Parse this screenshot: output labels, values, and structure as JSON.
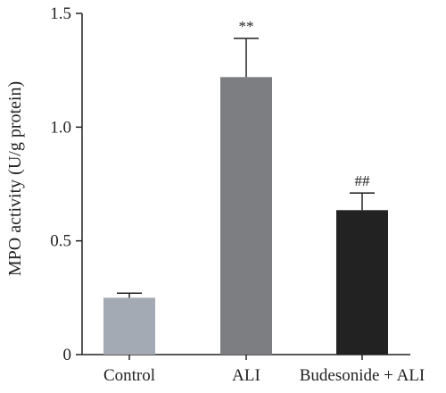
{
  "chart_data": {
    "type": "bar",
    "title": "",
    "xlabel": "",
    "ylabel": "MPO activity (U/g protein)",
    "ylim": [
      0,
      1.5
    ],
    "yticks": [
      "0",
      "0.5",
      "1.0",
      "1.5"
    ],
    "categories": [
      "Control",
      "ALI",
      "Budesonide + ALI"
    ],
    "values": [
      0.25,
      1.22,
      0.635
    ],
    "errors": [
      0.02,
      0.17,
      0.075
    ],
    "annotations": [
      "",
      "**",
      "##"
    ],
    "colors": [
      "#a4aab3",
      "#7d7e82",
      "#222222"
    ],
    "grid": false,
    "legend": "none"
  }
}
